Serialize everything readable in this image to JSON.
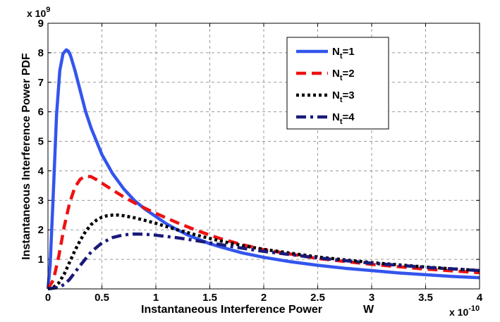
{
  "chart_data": {
    "type": "line",
    "title": "",
    "xlabel": "Instantaneous Interference Power",
    "xunit": "W",
    "ylabel": "Instantaneous Interference Power PDF",
    "x_exponent_label": "x 10",
    "x_exponent": "-10",
    "y_exponent_label": "x 10",
    "y_exponent": "9",
    "xlim": [
      0,
      4
    ],
    "ylim": [
      0,
      9
    ],
    "xticks": [
      "0",
      "0.5",
      "1",
      "1.5",
      "2",
      "2.5",
      "3",
      "3.5",
      "4"
    ],
    "yticks": [
      "1",
      "2",
      "3",
      "4",
      "5",
      "6",
      "7",
      "8",
      "9"
    ],
    "grid": true,
    "legend_position": "top-right",
    "series": [
      {
        "name": "N_t=1",
        "legend_main": "N",
        "legend_sub": "t",
        "legend_suffix": "=1",
        "color": "#3355ee",
        "style": "solid",
        "x": [
          0,
          0.02,
          0.05,
          0.08,
          0.11,
          0.14,
          0.17,
          0.19,
          0.21,
          0.25,
          0.3,
          0.35,
          0.4,
          0.5,
          0.6,
          0.7,
          0.8,
          0.9,
          1.0,
          1.1,
          1.2,
          1.3,
          1.4,
          1.5,
          1.6,
          1.8,
          2.0,
          2.25,
          2.5,
          2.75,
          3.0,
          3.25,
          3.5,
          3.75,
          4.0
        ],
        "y": [
          0,
          0.8,
          3.3,
          5.9,
          7.4,
          7.97,
          8.1,
          8.05,
          7.9,
          7.4,
          6.7,
          6.0,
          5.45,
          4.55,
          3.9,
          3.4,
          3.0,
          2.7,
          2.45,
          2.2,
          2.0,
          1.82,
          1.67,
          1.53,
          1.42,
          1.22,
          1.07,
          0.92,
          0.8,
          0.7,
          0.62,
          0.54,
          0.48,
          0.42,
          0.38
        ]
      },
      {
        "name": "N_t=2",
        "legend_main": "N",
        "legend_sub": "t",
        "legend_suffix": "=2",
        "color": "#ee1111",
        "style": "dashed",
        "x": [
          0,
          0.05,
          0.1,
          0.15,
          0.2,
          0.25,
          0.3,
          0.35,
          0.4,
          0.45,
          0.5,
          0.6,
          0.7,
          0.8,
          0.9,
          1.0,
          1.2,
          1.4,
          1.6,
          1.8,
          2.0,
          2.5,
          3.0,
          3.5,
          4.0
        ],
        "y": [
          0,
          0.3,
          1.1,
          2.1,
          2.9,
          3.45,
          3.72,
          3.82,
          3.8,
          3.7,
          3.58,
          3.35,
          3.12,
          2.92,
          2.73,
          2.56,
          2.24,
          1.95,
          1.7,
          1.5,
          1.33,
          1.03,
          0.83,
          0.67,
          0.55
        ]
      },
      {
        "name": "N_t=3",
        "legend_main": "N",
        "legend_sub": "t",
        "legend_suffix": "=3",
        "color": "#000000",
        "style": "dotted",
        "x": [
          0,
          0.05,
          0.1,
          0.15,
          0.2,
          0.25,
          0.3,
          0.35,
          0.4,
          0.45,
          0.5,
          0.55,
          0.6,
          0.65,
          0.7,
          0.8,
          0.9,
          1.0,
          1.2,
          1.4,
          1.6,
          1.8,
          2.0,
          2.5,
          3.0,
          3.5,
          4.0
        ],
        "y": [
          0,
          0.05,
          0.2,
          0.5,
          0.9,
          1.3,
          1.65,
          1.95,
          2.18,
          2.33,
          2.43,
          2.48,
          2.5,
          2.5,
          2.48,
          2.41,
          2.32,
          2.22,
          2.0,
          1.8,
          1.62,
          1.47,
          1.34,
          1.08,
          0.89,
          0.74,
          0.62
        ]
      },
      {
        "name": "N_t=4",
        "legend_main": "N",
        "legend_sub": "t",
        "legend_suffix": "=4",
        "color": "#1a1a7a",
        "style": "dashdot",
        "x": [
          0,
          0.1,
          0.15,
          0.2,
          0.3,
          0.4,
          0.5,
          0.6,
          0.7,
          0.8,
          0.9,
          1.0,
          1.2,
          1.4,
          1.6,
          1.8,
          2.0,
          2.5,
          3.0,
          3.5,
          4.0
        ],
        "y": [
          0,
          0.05,
          0.15,
          0.32,
          0.8,
          1.25,
          1.56,
          1.74,
          1.83,
          1.86,
          1.85,
          1.82,
          1.73,
          1.62,
          1.5,
          1.38,
          1.27,
          1.05,
          0.87,
          0.73,
          0.62
        ]
      }
    ]
  }
}
